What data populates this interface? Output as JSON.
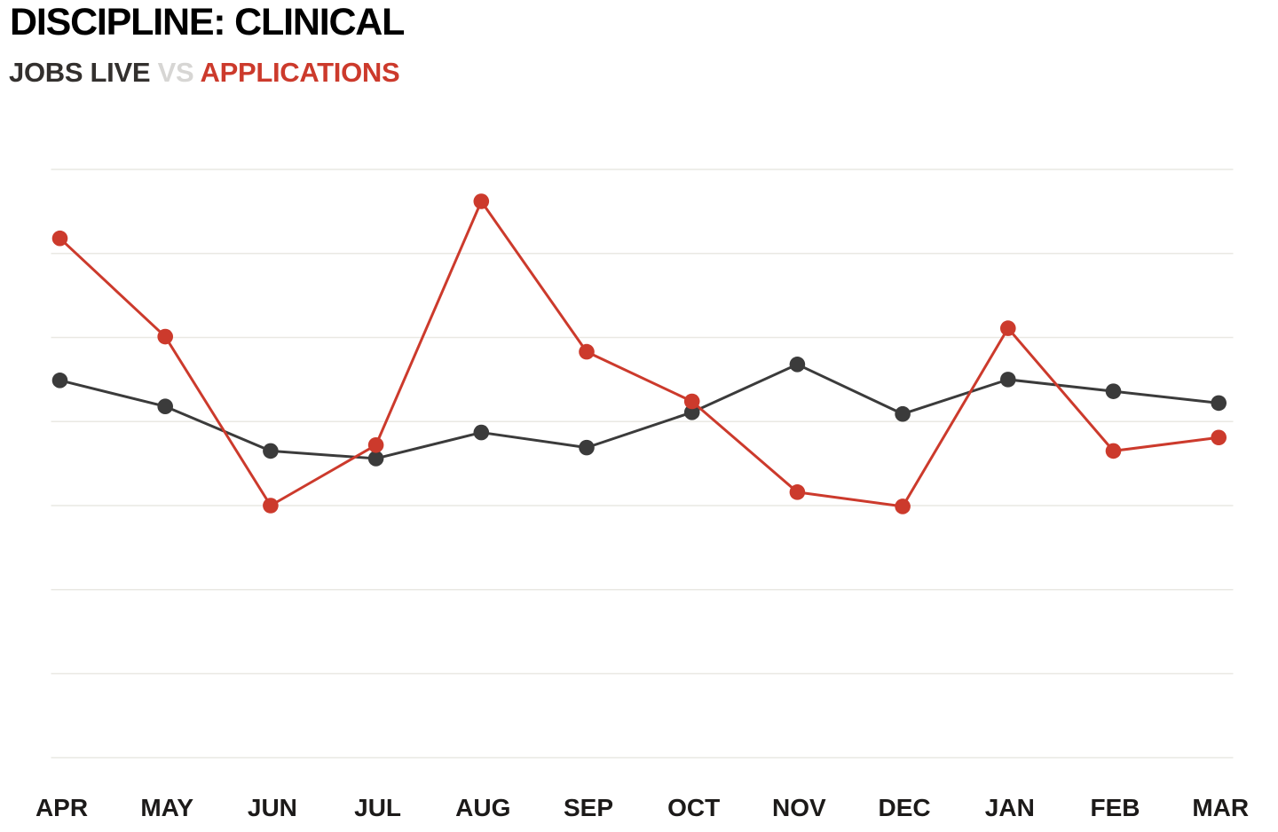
{
  "header": {
    "title": "DISCIPLINE: CLINICAL",
    "legend": {
      "series_a": "JOBS LIVE",
      "separator": "VS",
      "series_b": "APPLICATIONS"
    }
  },
  "colors": {
    "title": "#000000",
    "legend_series_a": "#33302e",
    "legend_separator": "#d7d6d4",
    "legend_series_b": "#cc3a2c",
    "series_a": "#3b3b3b",
    "series_b": "#cc3a2c",
    "grid": "#e9e8e3",
    "axis_label": "#1c1a19",
    "background": "#ffffff"
  },
  "chart_data": {
    "type": "line",
    "title": "DISCIPLINE: CLINICAL",
    "subtitle": "JOBS LIVE VS APPLICATIONS",
    "categories": [
      "APR",
      "MAY",
      "JUN",
      "JUL",
      "AUG",
      "SEP",
      "OCT",
      "NOV",
      "DEC",
      "JAN",
      "FEB",
      "MAR"
    ],
    "series": [
      {
        "name": "JOBS LIVE",
        "color": "#3b3b3b",
        "values": [
          44.9,
          41.8,
          36.5,
          35.6,
          38.7,
          36.9,
          41.1,
          46.8,
          40.9,
          45.0,
          43.6,
          42.2
        ]
      },
      {
        "name": "APPLICATIONS",
        "color": "#cc3a2c",
        "values": [
          61.8,
          50.1,
          30.0,
          37.2,
          66.2,
          48.3,
          42.4,
          31.6,
          29.9,
          51.1,
          36.5,
          38.1
        ]
      }
    ],
    "xlabel": "",
    "ylabel": "",
    "ylim": [
      0,
      70
    ],
    "grid_step": 10,
    "grid": true,
    "y_axis_labels_visible": false,
    "legend_position": "subtitle-top-left",
    "marker": "circle"
  }
}
